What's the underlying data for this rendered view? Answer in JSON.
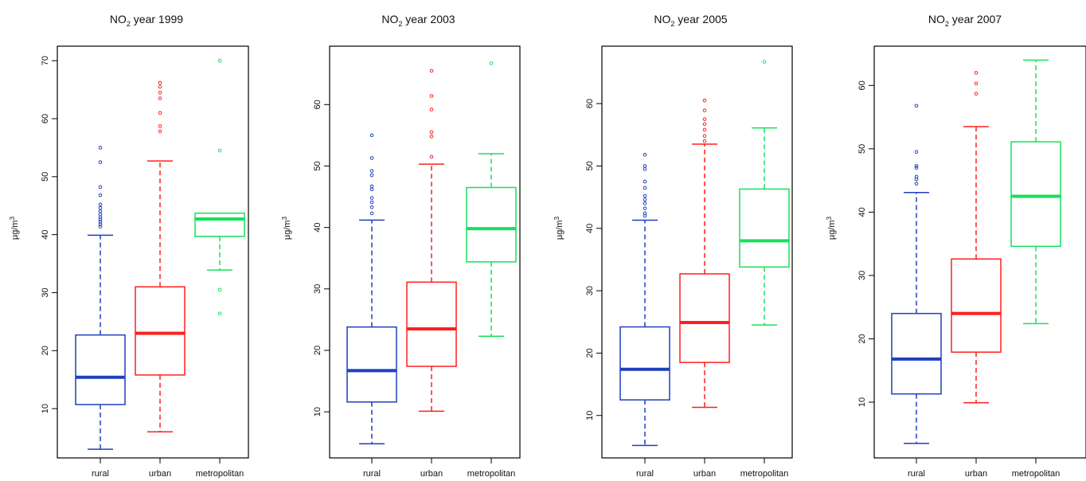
{
  "chart_data": [
    {
      "type": "box",
      "title": "NO2 year 1999",
      "title_parts": {
        "pre": "NO",
        "sub": "2",
        "post": " year 1999"
      },
      "ylabel": "µg/m³",
      "ylabel_parts": {
        "base": "µg/m",
        "sup": "3"
      },
      "ylim": [
        1.5,
        72.5
      ],
      "yticks": [
        10,
        20,
        30,
        40,
        50,
        60,
        70
      ],
      "categories": [
        "rural",
        "urban",
        "metropolitan"
      ],
      "series": [
        {
          "whisker_low": 3,
          "q1": 10.7,
          "median": 15.4,
          "q3": 22.7,
          "whisker_high": 39.9,
          "outliers": [
            41.4,
            41.8,
            42.2,
            42.6,
            43.0,
            43.5,
            44.0,
            44.6,
            45.2,
            46.8,
            48.2,
            52.5,
            55.0
          ]
        },
        {
          "whisker_low": 6,
          "q1": 15.8,
          "median": 23.0,
          "q3": 31.0,
          "whisker_high": 52.7,
          "outliers": [
            57.8,
            58.7,
            61.0,
            63.5,
            64.5,
            65.5,
            66.2
          ]
        },
        {
          "whisker_low": 33.9,
          "q1": 39.7,
          "median": 42.7,
          "q3": 43.7,
          "whisker_high": 43.7,
          "outliers": [
            26.4,
            30.5,
            54.5,
            70.0
          ]
        }
      ]
    },
    {
      "type": "box",
      "title": "NO2 year 2003",
      "title_parts": {
        "pre": "NO",
        "sub": "2",
        "post": " year 2003"
      },
      "ylabel": "µg/m³",
      "ylabel_parts": {
        "base": "µg/m",
        "sup": "3"
      },
      "ylim": [
        2.5,
        69.5
      ],
      "yticks": [
        10,
        20,
        30,
        40,
        50,
        60
      ],
      "categories": [
        "rural",
        "urban",
        "metropolitan"
      ],
      "series": [
        {
          "whisker_low": 4.8,
          "q1": 11.6,
          "median": 16.7,
          "q3": 23.8,
          "whisker_high": 41.2,
          "outliers": [
            42.3,
            43.3,
            44.1,
            44.8,
            46.2,
            46.7,
            48.5,
            49.2,
            51.3,
            55.0
          ]
        },
        {
          "whisker_low": 10.1,
          "q1": 17.4,
          "median": 23.5,
          "q3": 31.1,
          "whisker_high": 50.3,
          "outliers": [
            51.5,
            54.8,
            55.5,
            59.2,
            61.4,
            65.5
          ]
        },
        {
          "whisker_low": 22.3,
          "q1": 34.4,
          "median": 39.8,
          "q3": 46.5,
          "whisker_high": 52.0,
          "outliers": [
            66.7
          ]
        }
      ]
    },
    {
      "type": "box",
      "title": "NO2 year 2005",
      "title_parts": {
        "pre": "NO",
        "sub": "2",
        "post": " year 2005"
      },
      "ylabel": "µg/m³",
      "ylabel_parts": {
        "base": "µg/m",
        "sup": "3"
      },
      "ylim": [
        3.2,
        69.2
      ],
      "yticks": [
        10,
        20,
        30,
        40,
        50,
        60
      ],
      "categories": [
        "rural",
        "urban",
        "metropolitan"
      ],
      "series": [
        {
          "whisker_low": 5.2,
          "q1": 12.5,
          "median": 17.4,
          "q3": 24.2,
          "whisker_high": 41.3,
          "outliers": [
            42.0,
            42.4,
            43.2,
            44.0,
            44.6,
            45.2,
            46.5,
            47.5,
            49.5,
            50.0,
            51.8
          ]
        },
        {
          "whisker_low": 11.3,
          "q1": 18.5,
          "median": 24.9,
          "q3": 32.7,
          "whisker_high": 53.5,
          "outliers": [
            54.0,
            54.8,
            55.8,
            56.7,
            57.5,
            58.9,
            60.5
          ]
        },
        {
          "whisker_low": 24.5,
          "q1": 33.8,
          "median": 38.0,
          "q3": 46.3,
          "whisker_high": 56.1,
          "outliers": [
            66.7
          ]
        }
      ]
    },
    {
      "type": "box",
      "title": "NO2 year 2007",
      "title_parts": {
        "pre": "NO",
        "sub": "2",
        "post": " year 2007"
      },
      "ylabel": "µg/m³",
      "ylabel_parts": {
        "base": "µg/m",
        "sup": "3"
      },
      "ylim": [
        1.2,
        66.2
      ],
      "yticks": [
        10,
        20,
        30,
        40,
        50,
        60
      ],
      "categories": [
        "rural",
        "urban",
        "metropolitan"
      ],
      "series": [
        {
          "whisker_low": 3.5,
          "q1": 11.3,
          "median": 16.8,
          "q3": 24.0,
          "whisker_high": 43.1,
          "outliers": [
            44.5,
            45.2,
            45.6,
            47.0,
            47.3,
            49.5,
            56.8
          ]
        },
        {
          "whisker_low": 9.9,
          "q1": 17.9,
          "median": 24.0,
          "q3": 32.6,
          "whisker_high": 53.5,
          "outliers": [
            58.7,
            60.3,
            62.0
          ]
        },
        {
          "whisker_low": 22.4,
          "q1": 34.6,
          "median": 42.5,
          "q3": 51.1,
          "whisker_high": 64.0,
          "outliers": []
        }
      ]
    }
  ],
  "colors": {
    "rural": "#1f3fbf",
    "urban": "#ff1f1f",
    "metropolitan": "#17e05a",
    "axis": "#000000"
  }
}
